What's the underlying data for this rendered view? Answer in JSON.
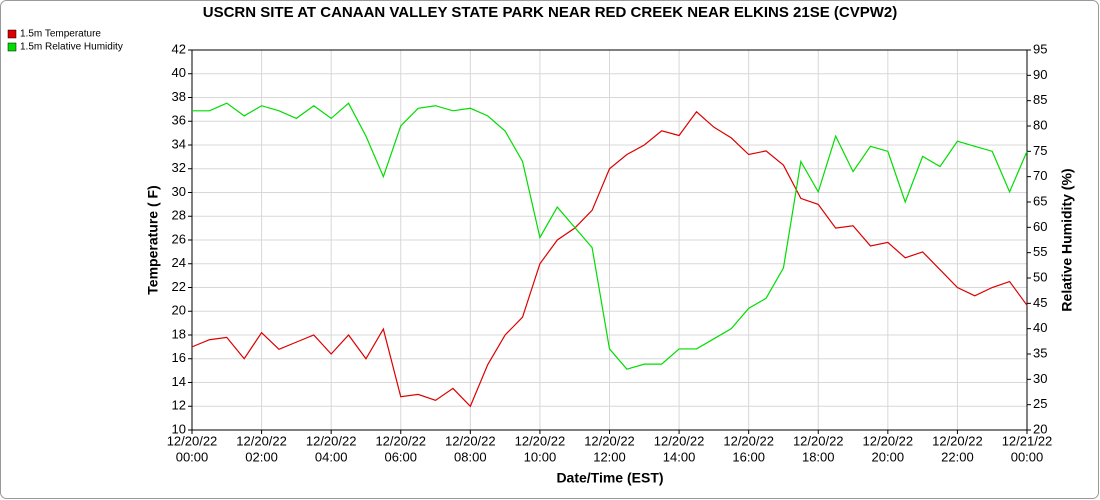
{
  "chart_data": {
    "type": "line",
    "title": "USCRN SITE AT CANAAN VALLEY STATE PARK NEAR RED CREEK NEAR ELKINS 21SE (CVPW2)",
    "x_label": "Date/Time (EST)",
    "y_label": "Temperature ( F)",
    "y2_label": "Relative Humidity (%)",
    "grid": true,
    "legend": "top-left",
    "x": [
      "12/20/22 00:00",
      "12/20/22 00:30",
      "12/20/22 01:00",
      "12/20/22 01:30",
      "12/20/22 02:00",
      "12/20/22 02:30",
      "12/20/22 03:00",
      "12/20/22 03:30",
      "12/20/22 04:00",
      "12/20/22 04:30",
      "12/20/22 05:00",
      "12/20/22 05:30",
      "12/20/22 06:00",
      "12/20/22 06:30",
      "12/20/22 07:00",
      "12/20/22 07:30",
      "12/20/22 08:00",
      "12/20/22 08:30",
      "12/20/22 09:00",
      "12/20/22 09:30",
      "12/20/22 10:00",
      "12/20/22 10:30",
      "12/20/22 11:00",
      "12/20/22 11:30",
      "12/20/22 12:00",
      "12/20/22 12:30",
      "12/20/22 13:00",
      "12/20/22 13:30",
      "12/20/22 14:00",
      "12/20/22 14:30",
      "12/20/22 15:00",
      "12/20/22 15:30",
      "12/20/22 16:00",
      "12/20/22 16:30",
      "12/20/22 17:00",
      "12/20/22 17:30",
      "12/20/22 18:00",
      "12/20/22 18:30",
      "12/20/22 19:00",
      "12/20/22 19:30",
      "12/20/22 20:00",
      "12/20/22 20:30",
      "12/20/22 21:00",
      "12/20/22 21:30",
      "12/20/22 22:00",
      "12/20/22 22:30",
      "12/20/22 23:00",
      "12/20/22 23:30",
      "12/21/22 00:00"
    ],
    "series": [
      {
        "name": "1.5m Temperature",
        "color": "#dd0000",
        "values": [
          17.0,
          17.6,
          17.8,
          16.0,
          18.2,
          16.8,
          17.4,
          18.0,
          16.4,
          18.0,
          16.0,
          18.5,
          12.8,
          13.0,
          12.5,
          13.5,
          12.0,
          15.5,
          18.0,
          19.5,
          24.0,
          26.0,
          27.0,
          28.5,
          32.0,
          33.2,
          34.0,
          35.2,
          34.8,
          36.8,
          35.5,
          34.6,
          33.2,
          33.5,
          32.3,
          29.5,
          29.0,
          27.0,
          27.2,
          25.5,
          25.8,
          24.5,
          25.0,
          23.5,
          22.0,
          21.3,
          22.0,
          22.5,
          20.5
        ]
      },
      {
        "name": "1.5m Relative Humidity",
        "color": "#00dd00",
        "axis": "y2",
        "values": [
          83,
          83,
          84.5,
          82,
          84,
          83,
          81.5,
          84,
          81.5,
          84.5,
          78,
          70,
          80,
          83.5,
          84,
          83,
          83.5,
          82,
          79,
          73,
          58,
          64,
          60,
          56,
          36,
          32,
          33,
          33,
          36,
          36,
          38,
          40,
          44,
          46,
          52,
          73,
          67,
          78,
          71,
          76,
          75,
          65,
          74,
          72,
          77,
          76,
          75,
          67,
          75
        ]
      }
    ],
    "ylim": [
      10,
      42
    ],
    "yticks": [
      10,
      12,
      14,
      16,
      18,
      20,
      22,
      24,
      26,
      28,
      30,
      32,
      34,
      36,
      38,
      40,
      42
    ],
    "y2lim": [
      20,
      95
    ],
    "y2ticks": [
      20,
      25,
      30,
      35,
      40,
      45,
      50,
      55,
      60,
      65,
      70,
      75,
      80,
      85,
      90,
      95
    ],
    "xticks": [
      [
        "12/20/22",
        "00:00"
      ],
      [
        "12/20/22",
        "02:00"
      ],
      [
        "12/20/22",
        "04:00"
      ],
      [
        "12/20/22",
        "06:00"
      ],
      [
        "12/20/22",
        "08:00"
      ],
      [
        "12/20/22",
        "10:00"
      ],
      [
        "12/20/22",
        "12:00"
      ],
      [
        "12/20/22",
        "14:00"
      ],
      [
        "12/20/22",
        "16:00"
      ],
      [
        "12/20/22",
        "18:00"
      ],
      [
        "12/20/22",
        "20:00"
      ],
      [
        "12/20/22",
        "22:00"
      ],
      [
        "12/21/22",
        "00:00"
      ]
    ]
  }
}
